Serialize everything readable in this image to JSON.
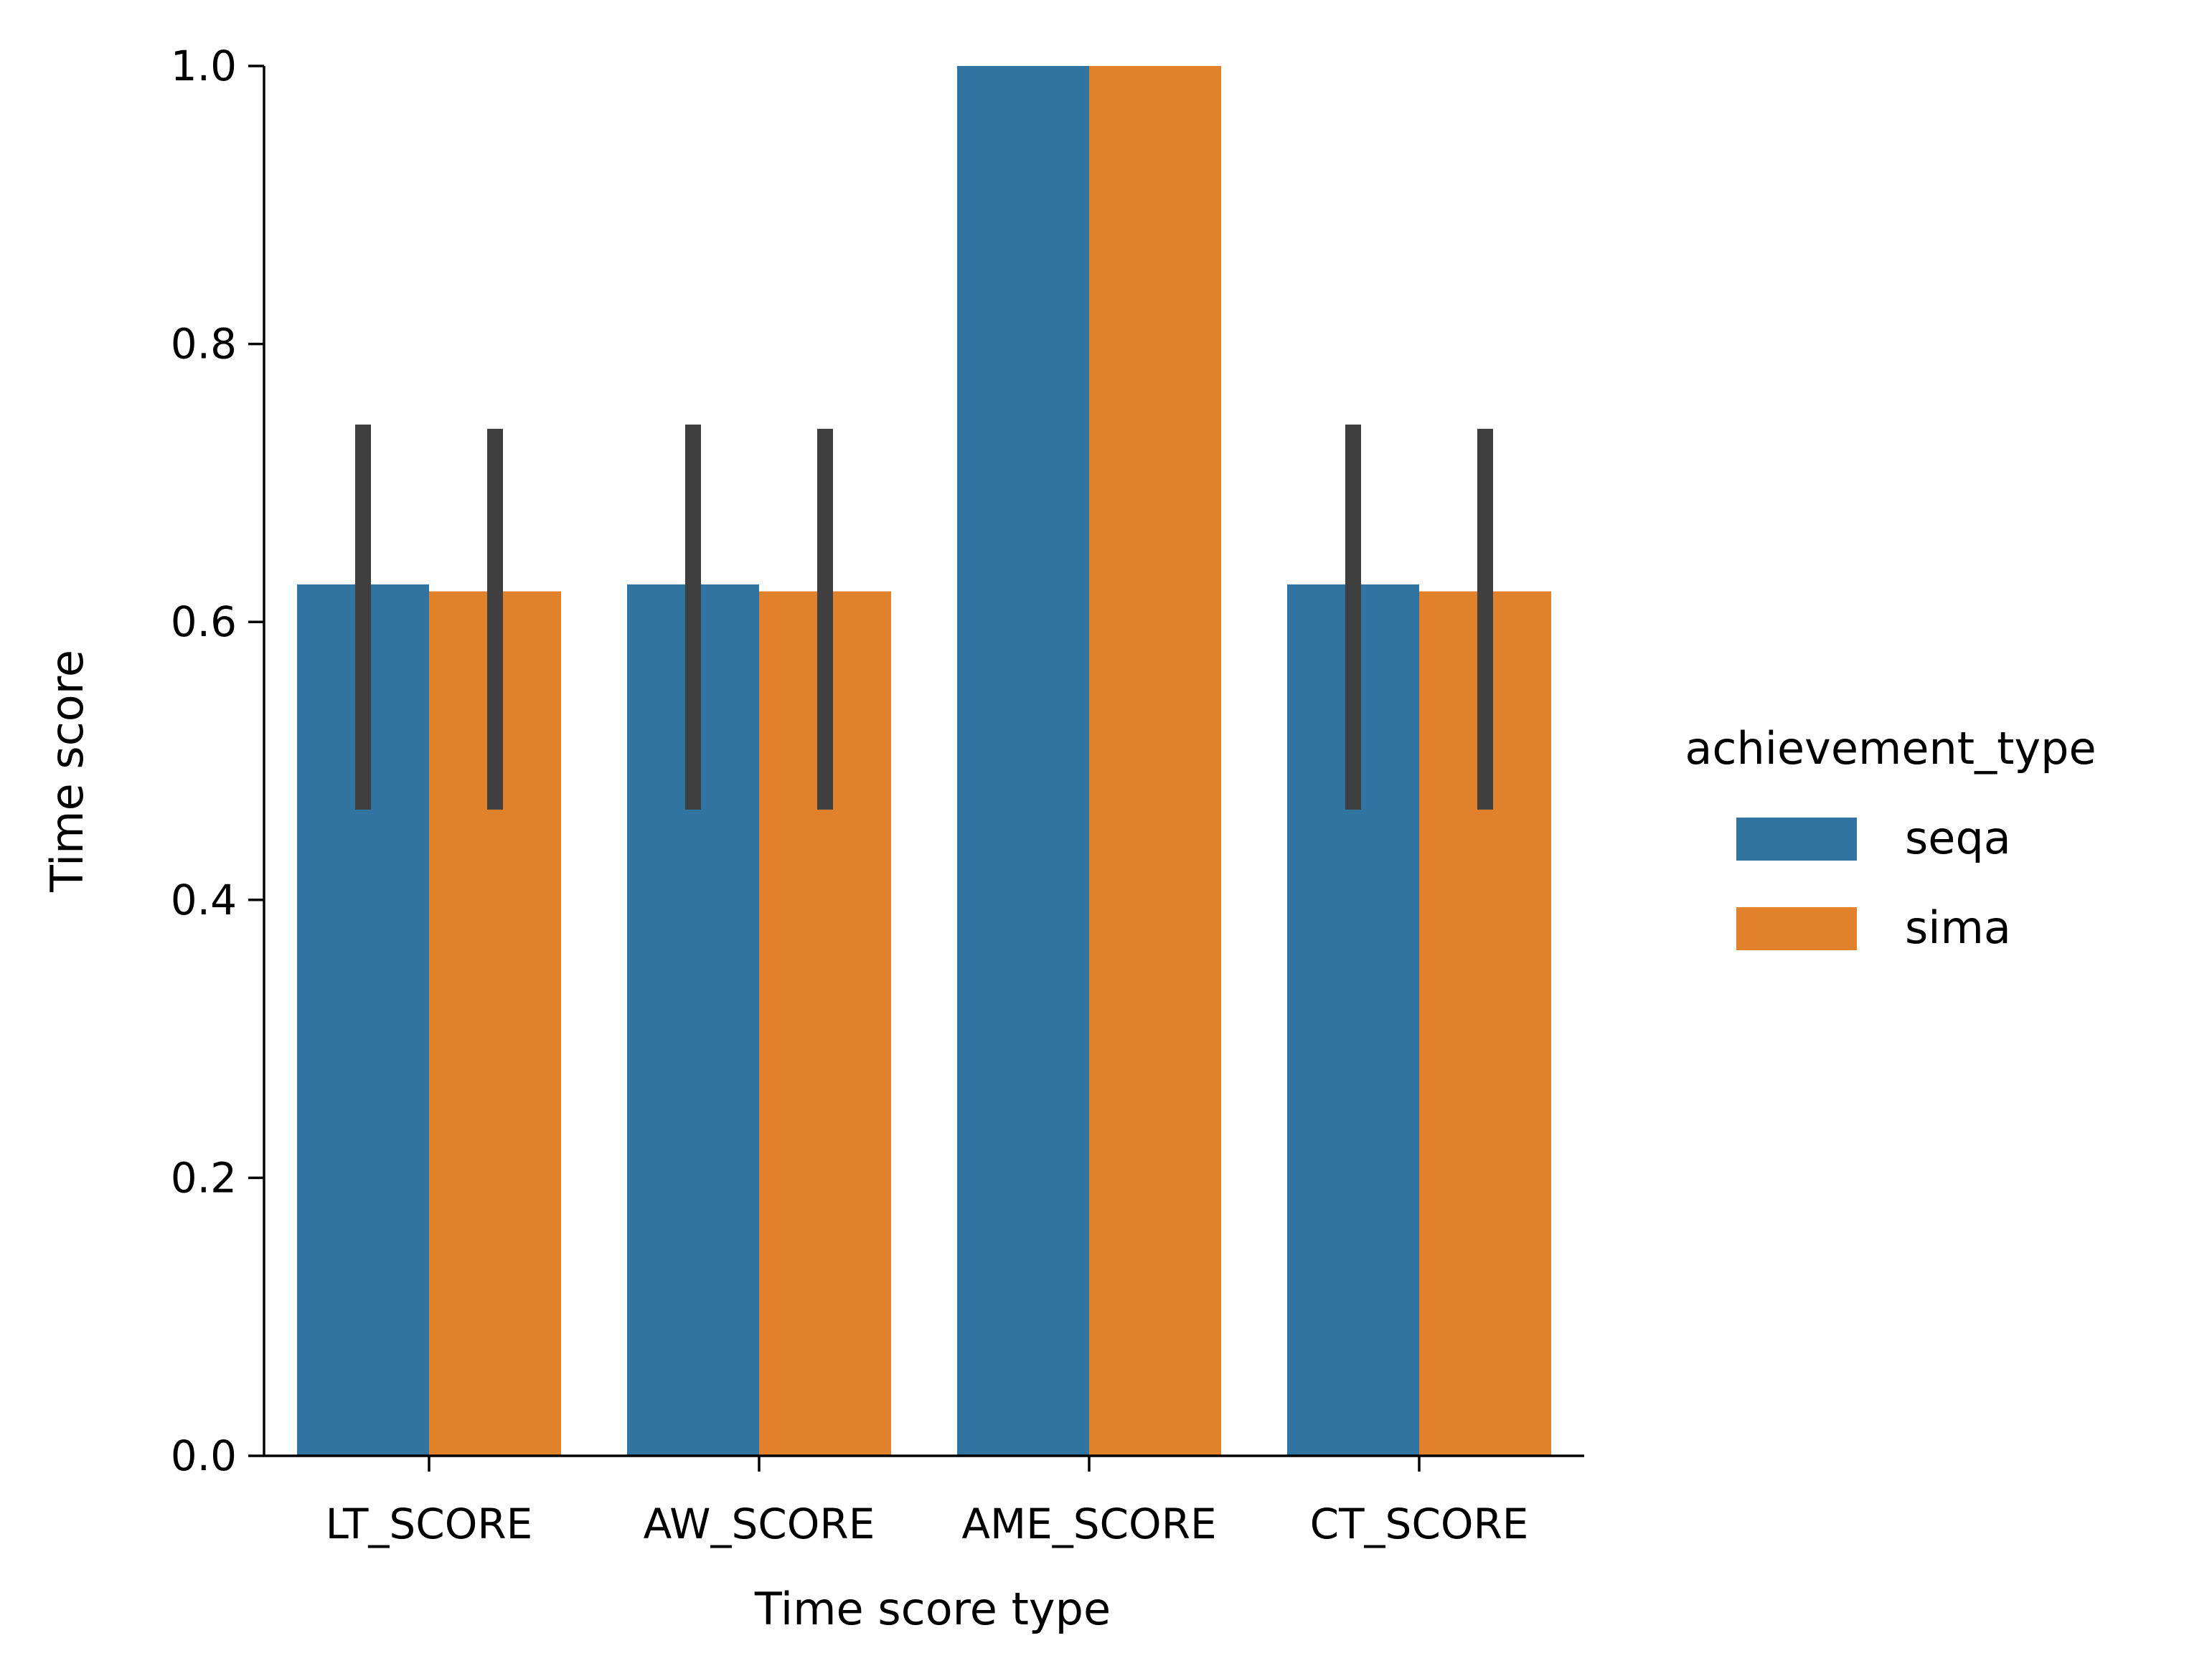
{
  "chart_data": {
    "type": "bar",
    "categories": [
      "LT_SCORE",
      "AW_SCORE",
      "AME_SCORE",
      "CT_SCORE"
    ],
    "xlabel": "Time score type",
    "ylabel": "Time score",
    "ylim": [
      0,
      1.0
    ],
    "yticks": [
      "0.0",
      "0.2",
      "0.4",
      "0.6",
      "0.8",
      "1.0"
    ],
    "grid": false,
    "legend": {
      "title": "achievement_type",
      "placement": "right"
    },
    "series": [
      {
        "name": "seqa",
        "color": "#3274a1",
        "values": [
          0.627,
          0.627,
          1.0,
          0.627
        ],
        "error_low": [
          0.465,
          0.465,
          null,
          0.465
        ],
        "error_high": [
          0.742,
          0.742,
          null,
          0.742
        ]
      },
      {
        "name": "sima",
        "color": "#e1812c",
        "values": [
          0.622,
          0.622,
          1.0,
          0.622
        ],
        "error_low": [
          0.465,
          0.465,
          null,
          0.465
        ],
        "error_high": [
          0.739,
          0.739,
          null,
          0.739
        ]
      }
    ],
    "errorbar_color": "#3f3f3f"
  }
}
